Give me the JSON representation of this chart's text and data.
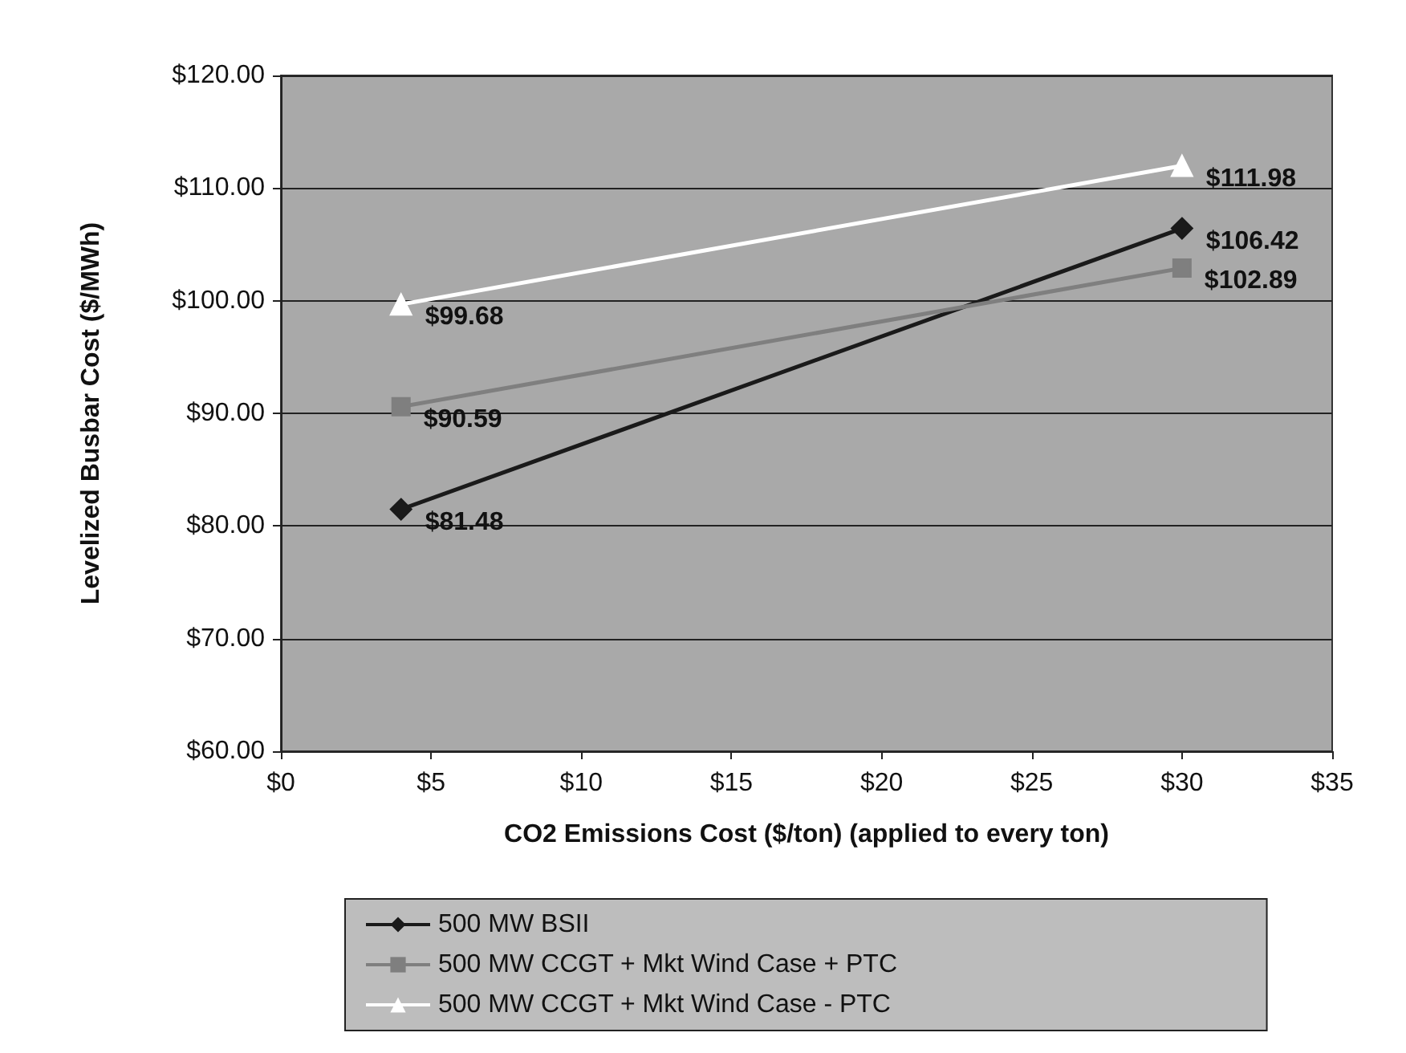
{
  "chart_data": {
    "type": "line",
    "xlabel": "CO2 Emissions Cost ($/ton) (applied to every ton)",
    "ylabel": "Levelized Busbar Cost ($/MWh)",
    "x": [
      4,
      30
    ],
    "series": [
      {
        "name": "500 MW BSII",
        "color": "#1a1a1a",
        "marker": "diamond",
        "values": [
          81.48,
          106.42
        ],
        "value_labels": [
          "$81.48",
          "$106.42"
        ]
      },
      {
        "name": "500 MW CCGT + Mkt Wind Case + PTC",
        "color": "#7f7f7f",
        "marker": "square",
        "values": [
          90.59,
          102.89
        ],
        "value_labels": [
          "$90.59",
          "$102.89"
        ]
      },
      {
        "name": "500 MW CCGT + Mkt Wind Case - PTC",
        "color": "#ffffff",
        "marker": "triangle",
        "values": [
          99.68,
          111.98
        ],
        "value_labels": [
          "$99.68",
          "$111.98"
        ]
      }
    ],
    "xlim": [
      0,
      35
    ],
    "xticks": [
      {
        "value": 0,
        "label": "$0"
      },
      {
        "value": 5,
        "label": "$5"
      },
      {
        "value": 10,
        "label": "$10"
      },
      {
        "value": 15,
        "label": "$15"
      },
      {
        "value": 20,
        "label": "$20"
      },
      {
        "value": 25,
        "label": "$25"
      },
      {
        "value": 30,
        "label": "$30"
      },
      {
        "value": 35,
        "label": "$35"
      }
    ],
    "ylim": [
      60,
      120
    ],
    "yticks": [
      {
        "value": 60,
        "label": "$60.00"
      },
      {
        "value": 70,
        "label": "$70.00"
      },
      {
        "value": 80,
        "label": "$80.00"
      },
      {
        "value": 90,
        "label": "$90.00"
      },
      {
        "value": 100,
        "label": "$100.00"
      },
      {
        "value": 110,
        "label": "$110.00"
      },
      {
        "value": 120,
        "label": "$120.00"
      }
    ],
    "grid": "y",
    "legend": "bottom",
    "line_style": "solid"
  }
}
